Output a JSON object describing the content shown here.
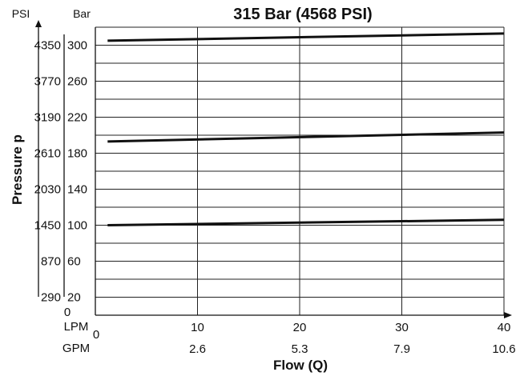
{
  "chart_data": {
    "type": "line",
    "title": "315 Bar (4568 PSI)",
    "xlabel": "Flow (Q)",
    "ylabel": "Pressure p",
    "x_units": [
      "LPM",
      "GPM"
    ],
    "y_units": [
      "PSI",
      "Bar"
    ],
    "xlim": [
      0,
      40
    ],
    "ylim": [
      0,
      320
    ],
    "grid": true,
    "x_ticks": [
      {
        "lpm": "10",
        "gpm": "2.6"
      },
      {
        "lpm": "20",
        "gpm": "5.3"
      },
      {
        "lpm": "30",
        "gpm": "7.9"
      },
      {
        "lpm": "40",
        "gpm": "10.6"
      }
    ],
    "x_origin_label": "0",
    "y_origin_label": "0",
    "y_ticks": [
      {
        "bar": "20",
        "psi": "290"
      },
      {
        "bar": "60",
        "psi": "870"
      },
      {
        "bar": "100",
        "psi": "1450"
      },
      {
        "bar": "140",
        "psi": "2030"
      },
      {
        "bar": "180",
        "psi": "2610"
      },
      {
        "bar": "220",
        "psi": "3190"
      },
      {
        "bar": "260",
        "psi": "3770"
      },
      {
        "bar": "300",
        "psi": "4350"
      }
    ],
    "y_gridlines_bar": [
      20,
      40,
      60,
      80,
      100,
      120,
      140,
      160,
      180,
      200,
      220,
      240,
      260,
      280,
      300,
      320
    ],
    "x_gridlines_lpm": [
      10,
      20,
      30,
      40
    ],
    "series": [
      {
        "x": [
          1.2,
          40
        ],
        "y": [
          305,
          313
        ]
      },
      {
        "x": [
          1.2,
          40
        ],
        "y": [
          193,
          203
        ]
      },
      {
        "x": [
          1.2,
          40
        ],
        "y": [
          100,
          106
        ]
      }
    ]
  }
}
